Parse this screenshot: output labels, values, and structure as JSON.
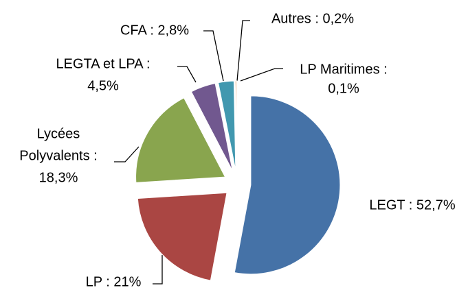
{
  "chart_data": {
    "type": "pie",
    "values": [
      52.7,
      21,
      18.3,
      4.5,
      2.8,
      0.2,
      0.1
    ],
    "value_labels": [
      [
        "LEGT : 52,7%"
      ],
      [
        "LP : 21%"
      ],
      [
        "Lycées",
        "Polyvalents :",
        "18,3%"
      ],
      [
        "LEGTA et LPA :",
        "4,5%"
      ],
      [
        "CFA : 2,8%"
      ],
      [
        "Autres : 0,2%"
      ],
      [
        "LP Maritimes :",
        "0,1%"
      ]
    ],
    "colors": [
      "#4572a7",
      "#aa4643",
      "#89a54e",
      "#71588f",
      "#4198af",
      "#db843d",
      "#93a9cf"
    ]
  }
}
